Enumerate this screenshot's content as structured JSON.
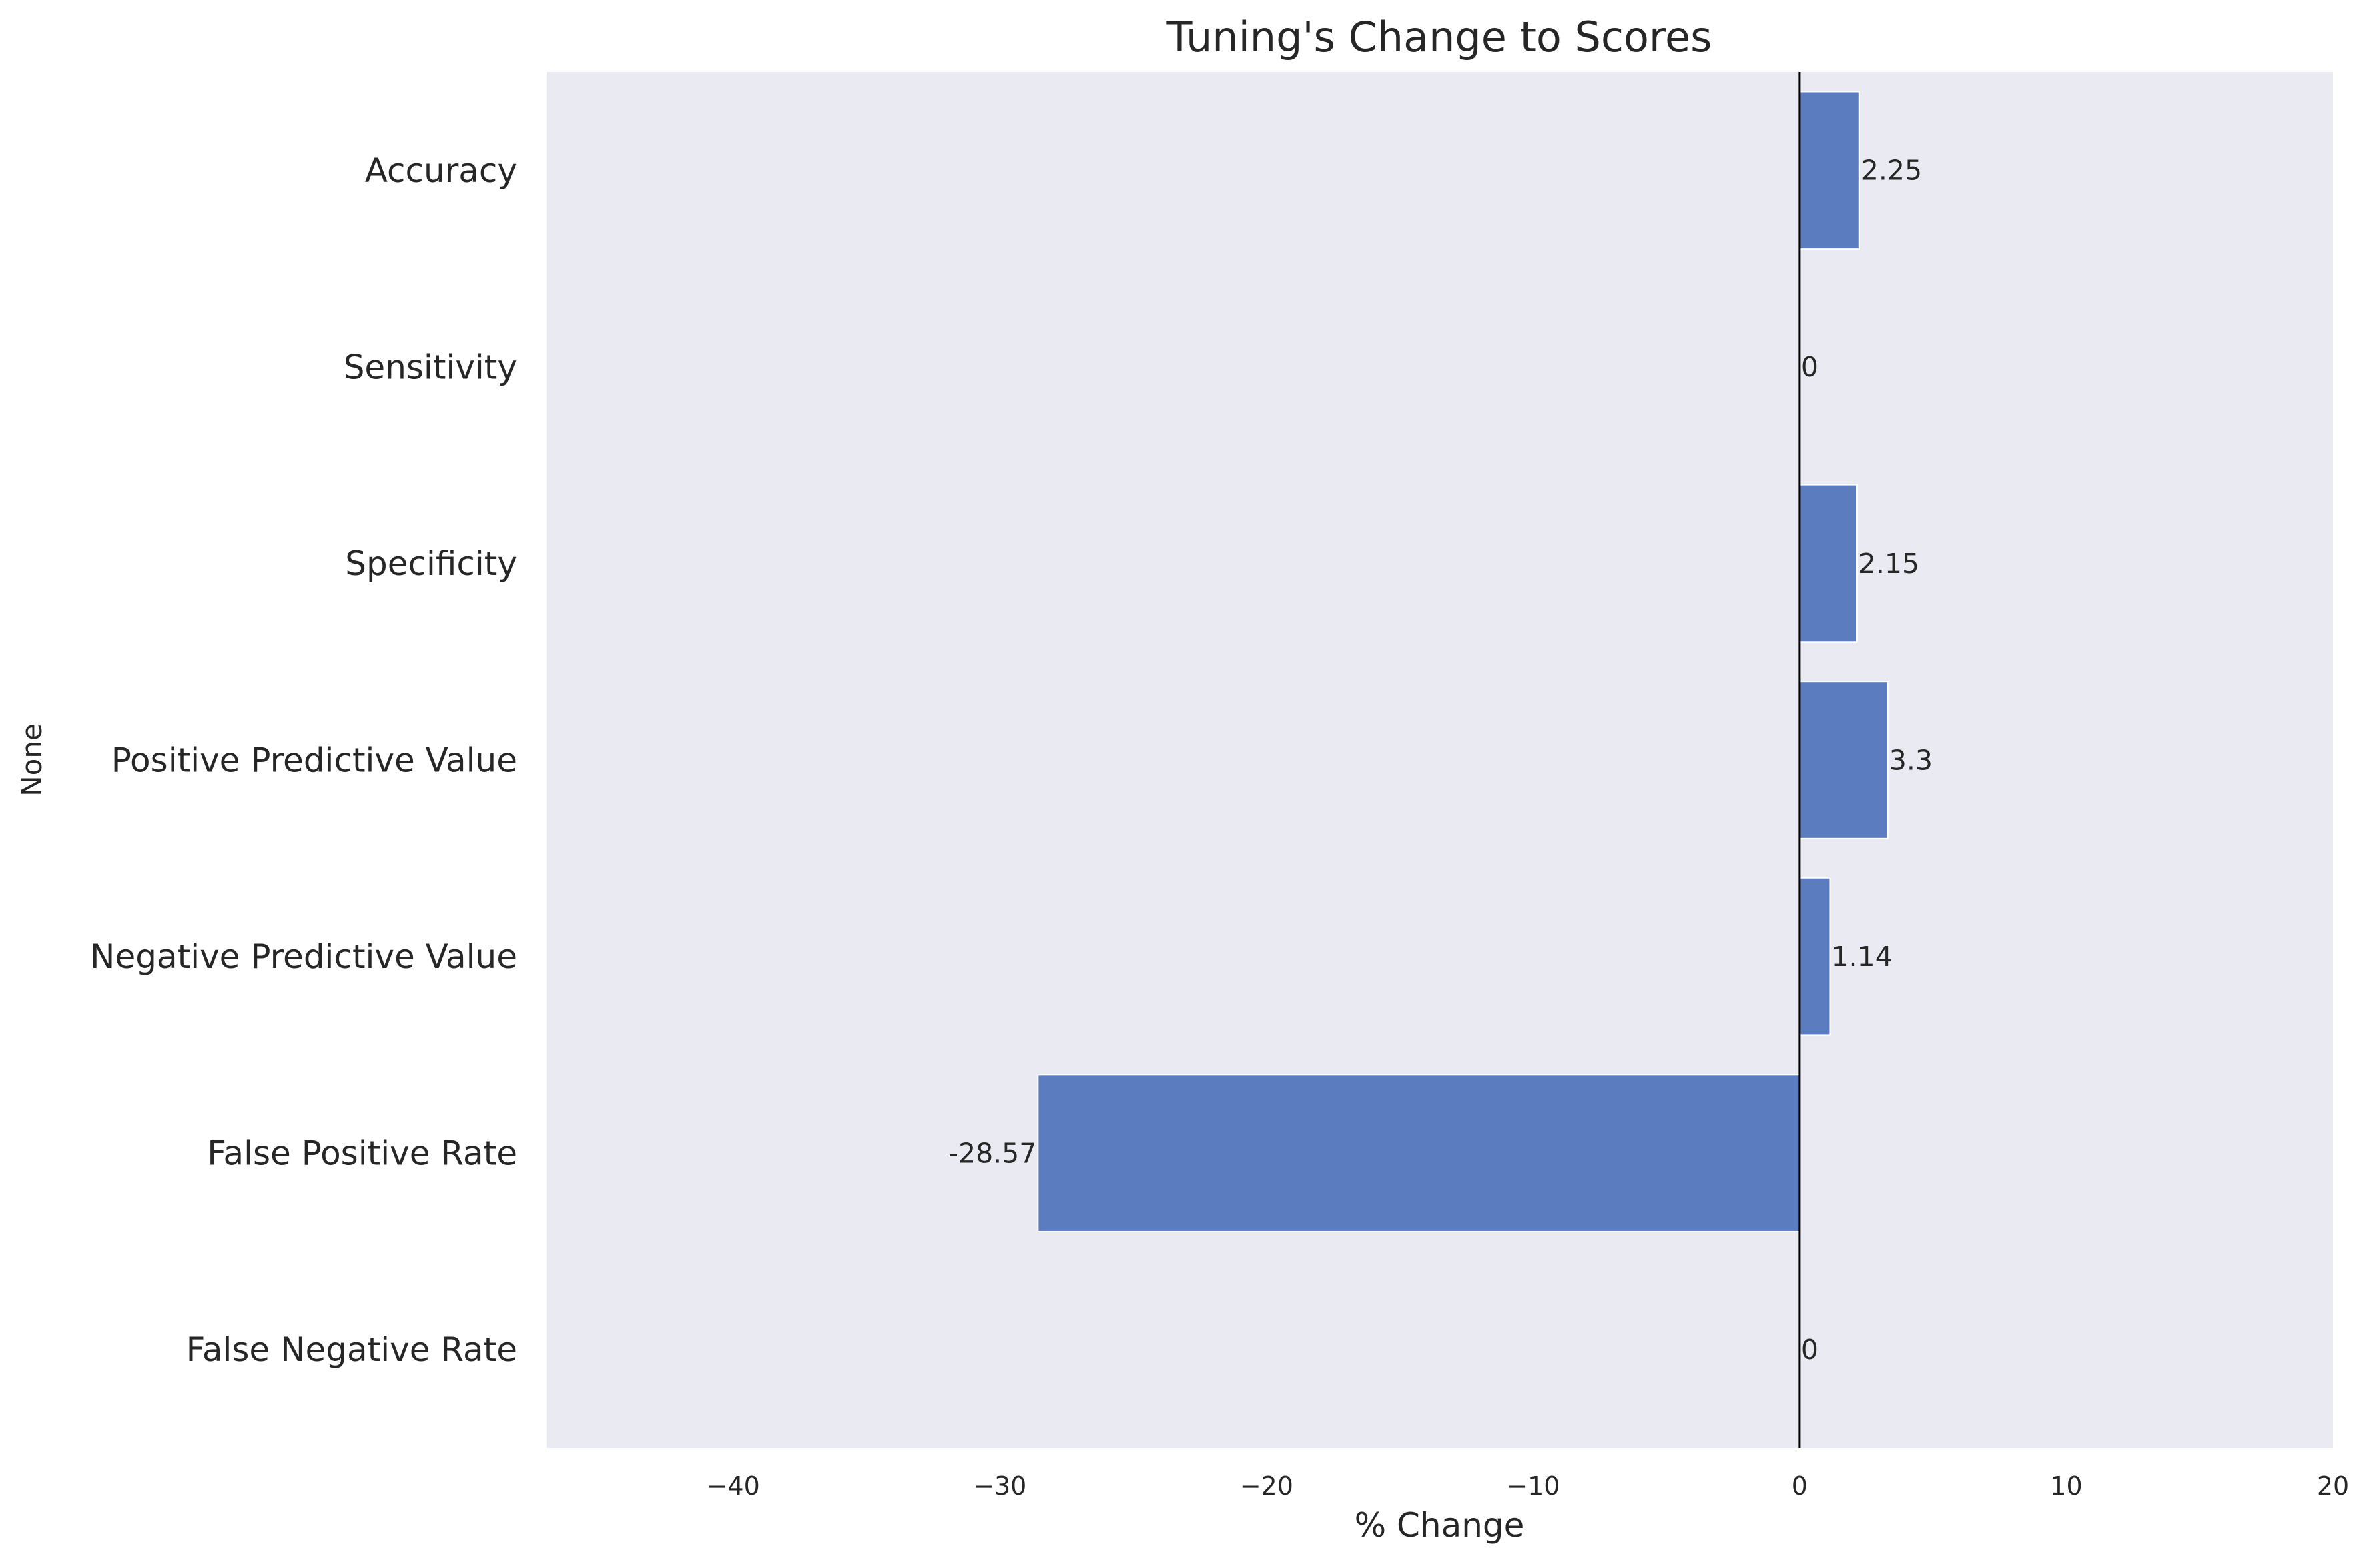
{
  "chart_data": {
    "type": "bar",
    "orientation": "horizontal",
    "title": "Tuning's Change to Scores",
    "xlabel": "% Change",
    "ylabel": "None",
    "categories": [
      "Accuracy",
      "Sensitivity",
      "Specificity",
      "Positive Predictive Value",
      "Negative Predictive Value",
      "False Positive Rate",
      "False Negative Rate"
    ],
    "values": [
      2.25,
      0,
      2.15,
      3.3,
      1.14,
      -28.57,
      0
    ],
    "data_labels": [
      "2.25",
      "0",
      "2.15",
      "3.3",
      "1.14",
      "-28.57",
      "0"
    ],
    "xlim": [
      -47,
      20
    ],
    "xticks": [
      -40,
      -30,
      -20,
      -10,
      0,
      10,
      20
    ],
    "xtick_labels": [
      "−40",
      "−30",
      "−20",
      "−10",
      "0",
      "10",
      "20"
    ],
    "grid": false,
    "zero_line": true,
    "colors": {
      "bar": "#5b7dbf",
      "plot_background": "#eaeaf2",
      "zero_line": "#000000"
    }
  }
}
